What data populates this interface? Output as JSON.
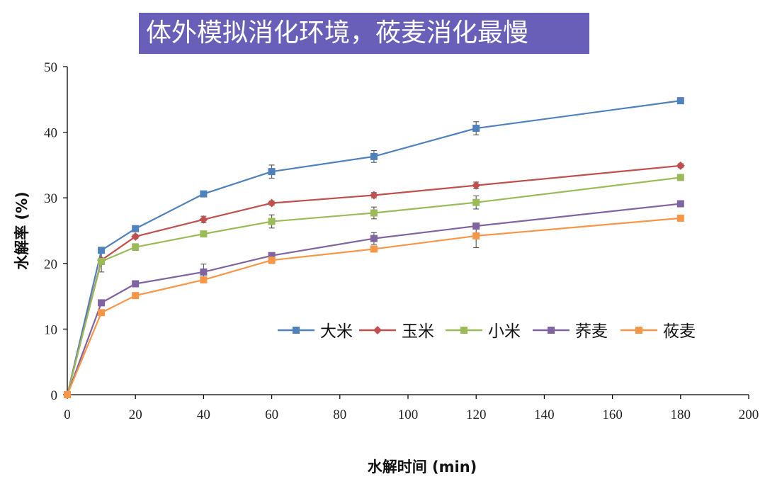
{
  "title": "体外模拟消化环境，莜麦消化最慢",
  "chart_data": {
    "type": "line",
    "xlabel": "水解时间 (min)",
    "ylabel": "水解率 (%)",
    "xlim": [
      0,
      200
    ],
    "ylim": [
      0,
      50
    ],
    "xticks": [
      0,
      20,
      40,
      60,
      80,
      100,
      120,
      140,
      160,
      180,
      200
    ],
    "yticks": [
      0,
      10,
      20,
      30,
      40,
      50
    ],
    "x": [
      0,
      10,
      20,
      40,
      60,
      90,
      120,
      180
    ],
    "legend_position": "inside-lower-right",
    "grid": false,
    "series": [
      {
        "name": "大米",
        "color": "#4f81bd",
        "marker": "square",
        "values": [
          0,
          22.0,
          25.3,
          30.6,
          34.0,
          36.3,
          40.6,
          44.8
        ],
        "errors": [
          0,
          0.4,
          0.3,
          0.3,
          1.0,
          0.9,
          1.0,
          0.3
        ]
      },
      {
        "name": "玉米",
        "color": "#c0504d",
        "marker": "diamond",
        "values": [
          0,
          20.5,
          24.1,
          26.7,
          29.2,
          30.4,
          31.9,
          34.9
        ],
        "errors": [
          0,
          0.3,
          0.3,
          0.5,
          0.3,
          0.4,
          0.5,
          0.3
        ]
      },
      {
        "name": "小米",
        "color": "#9bbb59",
        "marker": "square",
        "values": [
          0,
          20.3,
          22.5,
          24.5,
          26.4,
          27.7,
          29.3,
          33.1
        ],
        "errors": [
          0,
          1.6,
          0.5,
          0.4,
          1.0,
          0.9,
          1.0,
          0.3
        ]
      },
      {
        "name": "荞麦",
        "color": "#8064a2",
        "marker": "square",
        "values": [
          0,
          14.0,
          16.9,
          18.7,
          21.2,
          23.8,
          25.7,
          29.1
        ],
        "errors": [
          0,
          0.3,
          0.3,
          1.2,
          0.3,
          0.9,
          0.3,
          0.3
        ]
      },
      {
        "name": "莜麦",
        "color": "#f79646",
        "marker": "square",
        "values": [
          0,
          12.5,
          15.1,
          17.5,
          20.5,
          22.2,
          24.2,
          26.9
        ],
        "errors": [
          0,
          0.3,
          0.3,
          0.3,
          0.5,
          0.4,
          1.8,
          0.3
        ]
      }
    ]
  }
}
